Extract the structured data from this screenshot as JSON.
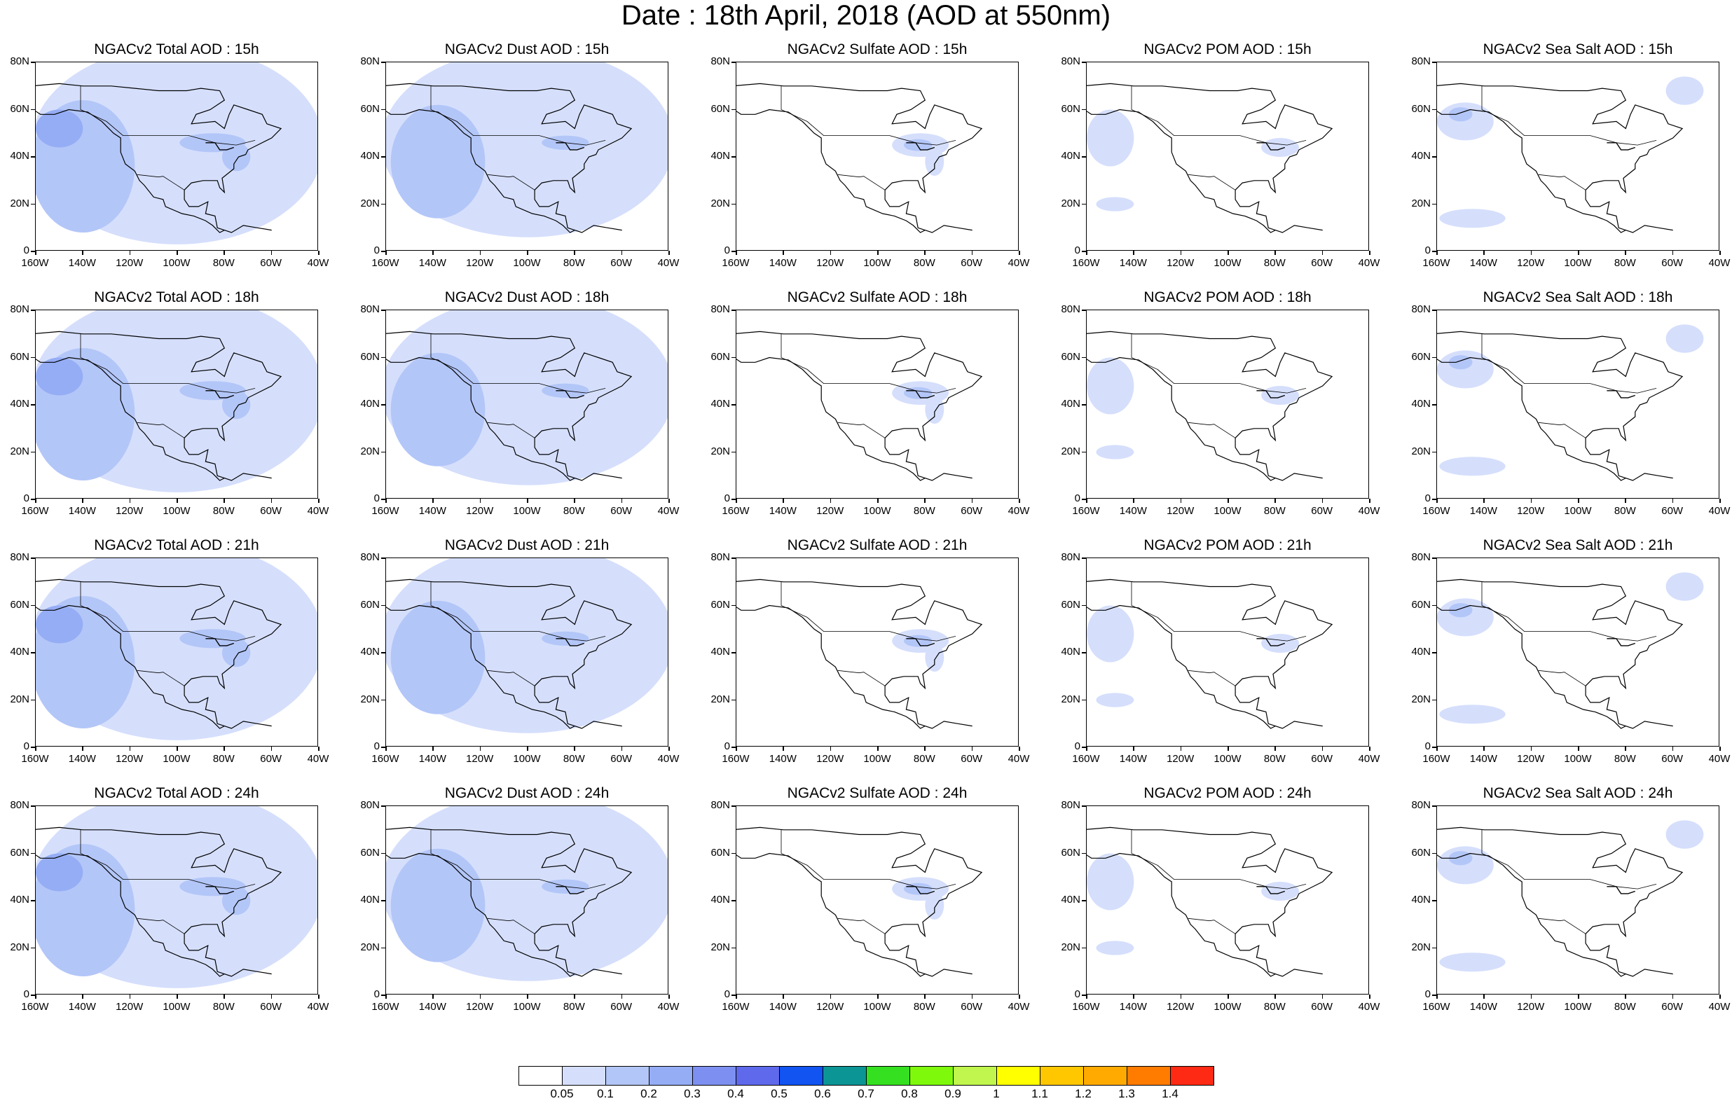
{
  "title": "Date : 18th April, 2018 (AOD at 550nm)",
  "panels": [
    [
      "NGACv2 Total AOD : 15h",
      "NGACv2 Dust AOD : 15h",
      "NGACv2 Sulfate AOD : 15h",
      "NGACv2 POM AOD : 15h",
      "NGACv2 Sea Salt AOD : 15h"
    ],
    [
      "NGACv2 Total AOD : 18h",
      "NGACv2 Dust AOD : 18h",
      "NGACv2 Sulfate AOD : 18h",
      "NGACv2 POM AOD : 18h",
      "NGACv2 Sea Salt AOD : 18h"
    ],
    [
      "NGACv2 Total AOD : 21h",
      "NGACv2 Dust AOD : 21h",
      "NGACv2 Sulfate AOD : 21h",
      "NGACv2 POM AOD : 21h",
      "NGACv2 Sea Salt AOD : 21h"
    ],
    [
      "NGACv2 Total AOD : 24h",
      "NGACv2 Dust AOD : 24h",
      "NGACv2 Sulfate AOD : 24h",
      "NGACv2 POM AOD : 24h",
      "NGACv2 Sea Salt  AOD : 24h"
    ]
  ],
  "columns": [
    "Total",
    "Dust",
    "Sulfate",
    "POM",
    "Sea Salt"
  ],
  "hours": [
    "15h",
    "18h",
    "21h",
    "24h"
  ],
  "y_ticks": [
    "80N",
    "60N",
    "40N",
    "20N",
    "0"
  ],
  "x_ticks": [
    "160W",
    "140W",
    "120W",
    "100W",
    "80W",
    "60W",
    "40W"
  ],
  "map_extent": {
    "lon": [
      -160,
      -40
    ],
    "lat": [
      0,
      80
    ]
  },
  "colorbar": {
    "colors": [
      "#ffffff",
      "#d5dffc",
      "#b3c6f8",
      "#95adf5",
      "#7d90f1",
      "#5f69ec",
      "#1154f2",
      "#0c9595",
      "#35e020",
      "#7ef90b",
      "#c0f64d",
      "#ffff00",
      "#ffc700",
      "#ffaa00",
      "#ff7c00",
      "#ff2a14"
    ],
    "labels": [
      "0.05",
      "0.1",
      "0.2",
      "0.3",
      "0.4",
      "0.5",
      "0.6",
      "0.7",
      "0.8",
      "0.9",
      "1",
      "1.1",
      "1.2",
      "1.3",
      "1.4"
    ]
  },
  "map_colors": {
    "coast": "#000000",
    "light": "#d5dffc",
    "mid": "#b3c6f8",
    "strong": "#95adf5"
  }
}
